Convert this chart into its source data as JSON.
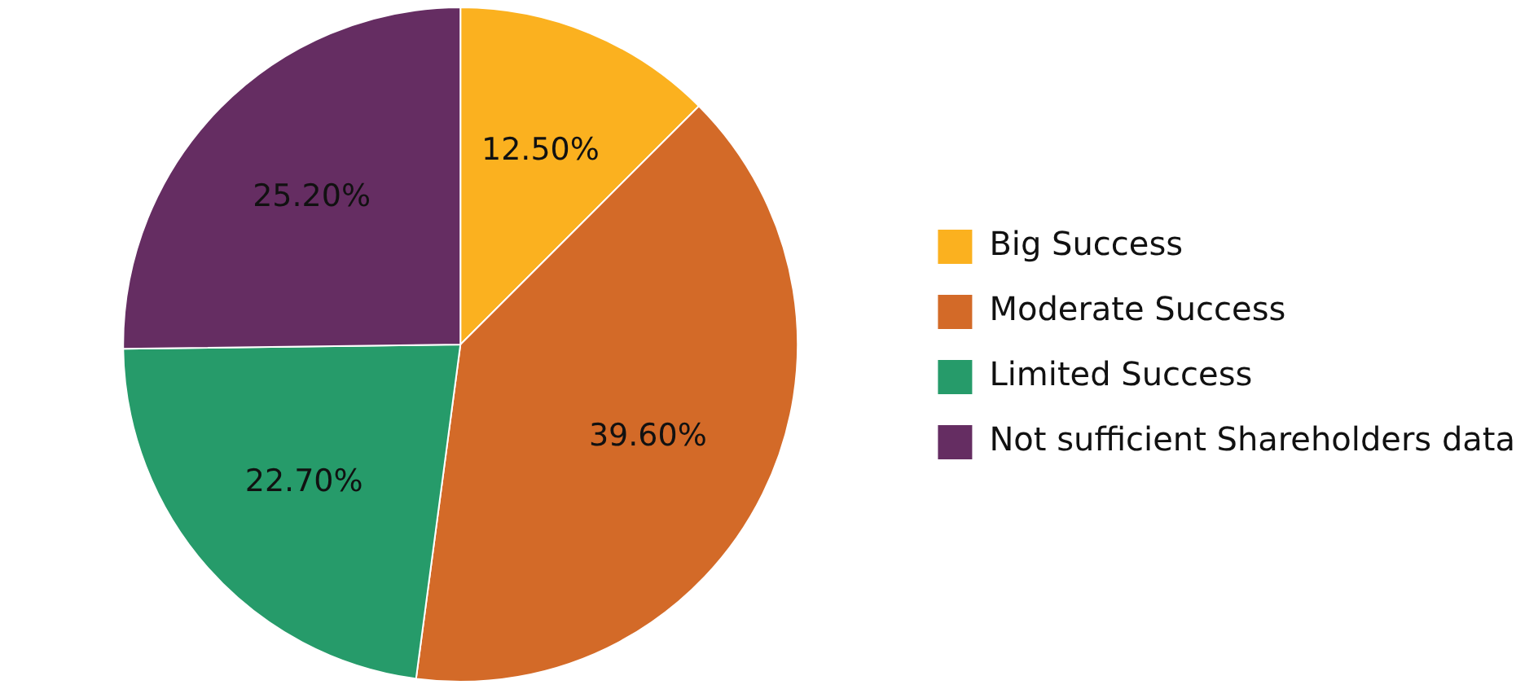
{
  "chart_data": {
    "type": "pie",
    "categories": [
      "Big Success",
      "Moderate Success",
      "Limited Success",
      "Not sufficient Shareholders data"
    ],
    "values": [
      12.5,
      39.6,
      22.7,
      25.2
    ],
    "colors": [
      "#fbb11f",
      "#d36a28",
      "#269b6a",
      "#652d62"
    ],
    "value_labels": [
      "12.50%",
      "39.60%",
      "22.70%",
      "25.20%"
    ],
    "legend": "right"
  }
}
